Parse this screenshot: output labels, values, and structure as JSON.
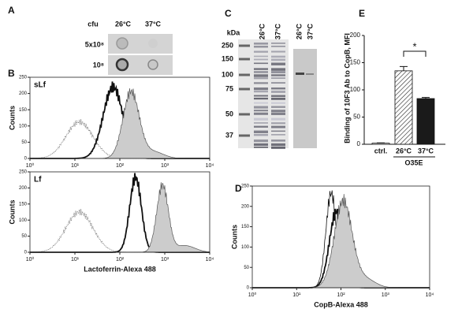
{
  "panels": [
    "A",
    "B",
    "C",
    "D",
    "E"
  ],
  "dot_blot": {
    "header": [
      "cfu",
      "26°C",
      "37°C"
    ],
    "rows": [
      "5x10⁸",
      "10⁸"
    ]
  },
  "gel": {
    "unit": "kDa",
    "markers": [
      "250",
      "150",
      "100",
      "75",
      "50",
      "37"
    ],
    "lanes": [
      "26°C",
      "37°C",
      "26°C",
      "37°C"
    ]
  },
  "histograms": [
    {
      "label": "sLf",
      "y_axis": "Counts",
      "yticks": [
        0,
        50,
        100,
        150,
        200,
        250
      ],
      "xticks": [
        {
          "value": 1,
          "label": "10⁰"
        },
        {
          "value": 10,
          "label": "10¹"
        },
        {
          "value": 100,
          "label": "10²"
        },
        {
          "value": 1000,
          "label": "10³"
        },
        {
          "value": 10000,
          "label": "10⁴"
        }
      ],
      "log_scale": true
    },
    {
      "label": "Lf",
      "y_axis": "Counts",
      "yticks": [
        0,
        50,
        100,
        150,
        200,
        250
      ],
      "xticks": [
        {
          "value": 1,
          "label": "10⁰"
        },
        {
          "value": 10,
          "label": "10¹"
        },
        {
          "value": 100,
          "label": "10²"
        },
        {
          "value": 1000,
          "label": "10³"
        },
        {
          "value": 10000,
          "label": "10⁴"
        }
      ],
      "x_axis": "Lactoferrin-Alexa 488",
      "log_scale": true
    },
    {
      "y_axis": "Counts",
      "yticks": [
        0,
        50,
        100,
        150,
        200,
        250
      ],
      "xticks": [
        {
          "value": 1,
          "label": "10⁰"
        },
        {
          "value": 10,
          "label": "10¹"
        },
        {
          "value": 100,
          "label": "10²"
        },
        {
          "value": 1000,
          "label": "10³"
        },
        {
          "value": 10000,
          "label": "10⁴"
        }
      ],
      "x_axis": "CopB-Alexa 488",
      "log_scale": true
    }
  ],
  "chart_data": {
    "type": "bar",
    "y_label": "Binding of 10F3 Ab to CopB, MFI",
    "categories": [
      "ctrl.",
      "26°C",
      "37°C"
    ],
    "values": [
      2,
      135,
      84
    ],
    "errors": [
      0.5,
      8,
      2
    ],
    "colors": [
      "#ffffff",
      "hatch",
      "#1a1a1a"
    ],
    "group_label": "O35E",
    "annotation": "*",
    "ylim": [
      0,
      200
    ],
    "yticks": [
      0,
      50,
      100,
      150,
      200
    ]
  }
}
